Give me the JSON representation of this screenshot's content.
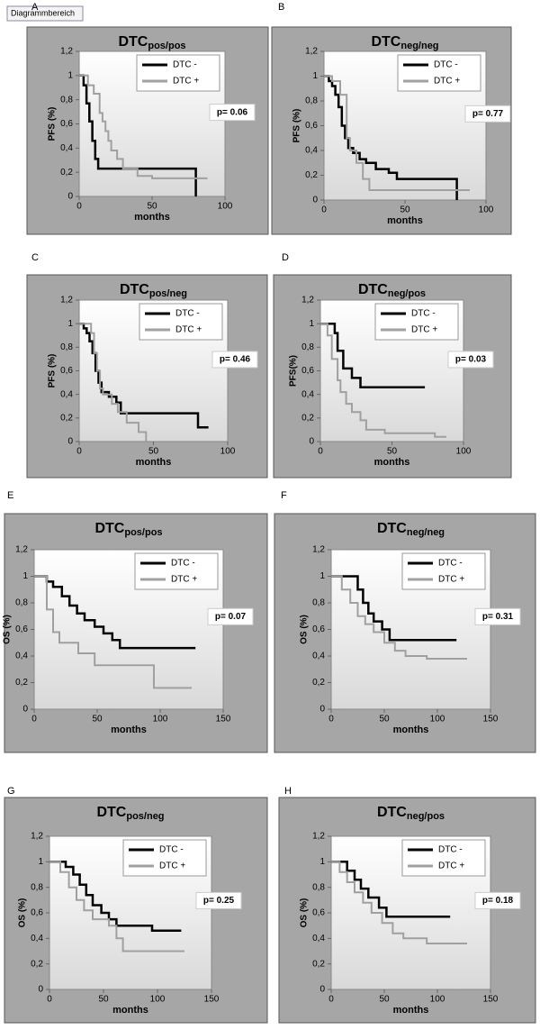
{
  "tooltip": "Diagrammbereich",
  "chart_data": [
    {
      "type": "line",
      "panel": "A",
      "title": "DTC",
      "title_sub": "pos/pos",
      "ylabel": "PFS (%)",
      "xlabel": "months",
      "annotation": "p= 0.06",
      "xlim": [
        0,
        100
      ],
      "xticks": [
        0,
        50,
        100
      ],
      "ylim": [
        0,
        1.2
      ],
      "yticks": [
        0,
        {
          "value": 0.2,
          "label": "0,2"
        },
        {
          "value": 0.4,
          "label": "0,4"
        },
        {
          "value": 0.6,
          "label": "0,6"
        },
        {
          "value": 0.8,
          "label": "0,8"
        },
        1,
        {
          "value": 1.2,
          "label": "1,2"
        }
      ],
      "series": [
        {
          "name": "DTC -",
          "color": "#000000",
          "x": [
            0,
            3,
            3,
            5,
            5,
            7,
            7,
            9,
            9,
            11,
            11,
            13,
            13,
            80,
            80
          ],
          "values": [
            1,
            1,
            0.92,
            0.92,
            0.77,
            0.77,
            0.62,
            0.62,
            0.46,
            0.46,
            0.31,
            0.31,
            0.23,
            0.23,
            0
          ]
        },
        {
          "name": "DTC +",
          "color": "#a0a0a0",
          "x": [
            0,
            6,
            6,
            10,
            10,
            14,
            14,
            16,
            16,
            18,
            18,
            20,
            20,
            22,
            22,
            26,
            26,
            30,
            30,
            40,
            40,
            50,
            50,
            88
          ],
          "values": [
            1,
            1,
            0.92,
            0.92,
            0.85,
            0.85,
            0.69,
            0.69,
            0.62,
            0.62,
            0.54,
            0.54,
            0.46,
            0.46,
            0.38,
            0.38,
            0.31,
            0.31,
            0.23,
            0.23,
            0.17,
            0.17,
            0.15,
            0.15
          ]
        }
      ]
    },
    {
      "type": "line",
      "panel": "B",
      "title": "DTC",
      "title_sub": "neg/neg",
      "ylabel": "PFS (%)",
      "xlabel": "months",
      "annotation": "p= 0.77",
      "xlim": [
        0,
        100
      ],
      "xticks": [
        0,
        50,
        100
      ],
      "ylim": [
        0,
        1.2
      ],
      "yticks": [
        0,
        {
          "value": 0.2,
          "label": "0,2"
        },
        {
          "value": 0.4,
          "label": "0,4"
        },
        {
          "value": 0.6,
          "label": "0,6"
        },
        {
          "value": 0.8,
          "label": "0,8"
        },
        1,
        {
          "value": 1.2,
          "label": "1,2"
        }
      ],
      "series": [
        {
          "name": "DTC -",
          "color": "#000000",
          "x": [
            0,
            3,
            3,
            5,
            5,
            7,
            7,
            9,
            9,
            11,
            11,
            13,
            13,
            15,
            15,
            18,
            18,
            22,
            22,
            26,
            26,
            32,
            32,
            40,
            40,
            45,
            45,
            82,
            82
          ],
          "values": [
            1,
            1,
            0.96,
            0.96,
            0.92,
            0.92,
            0.85,
            0.85,
            0.75,
            0.75,
            0.6,
            0.6,
            0.5,
            0.5,
            0.42,
            0.42,
            0.38,
            0.38,
            0.33,
            0.33,
            0.3,
            0.3,
            0.25,
            0.25,
            0.22,
            0.22,
            0.17,
            0.17,
            0
          ]
        },
        {
          "name": "DTC +",
          "color": "#a0a0a0",
          "x": [
            0,
            5,
            5,
            10,
            10,
            14,
            14,
            16,
            16,
            20,
            20,
            24,
            24,
            28,
            28,
            90
          ],
          "values": [
            1,
            1,
            0.96,
            0.96,
            0.85,
            0.85,
            0.5,
            0.5,
            0.4,
            0.4,
            0.3,
            0.3,
            0.17,
            0.17,
            0.08,
            0.08
          ]
        }
      ]
    },
    {
      "type": "line",
      "panel": "C",
      "title": "DTC",
      "title_sub": "pos/neg",
      "ylabel": "PFS (%)",
      "xlabel": "months",
      "annotation": "p= 0.46",
      "xlim": [
        0,
        100
      ],
      "xticks": [
        0,
        50,
        100
      ],
      "ylim": [
        0,
        1.2
      ],
      "yticks": [
        0,
        {
          "value": 0.2,
          "label": "0,2"
        },
        {
          "value": 0.4,
          "label": "0,4"
        },
        {
          "value": 0.6,
          "label": "0,6"
        },
        {
          "value": 0.8,
          "label": "0,8"
        },
        1,
        {
          "value": 1.2,
          "label": "1,2"
        }
      ],
      "series": [
        {
          "name": "DTC -",
          "color": "#000000",
          "x": [
            0,
            3,
            3,
            5,
            5,
            7,
            7,
            9,
            9,
            11,
            11,
            13,
            13,
            15,
            15,
            20,
            20,
            25,
            25,
            28,
            28,
            80,
            80,
            87
          ],
          "values": [
            1,
            1,
            0.96,
            0.96,
            0.92,
            0.92,
            0.85,
            0.85,
            0.75,
            0.75,
            0.6,
            0.6,
            0.5,
            0.5,
            0.42,
            0.42,
            0.38,
            0.38,
            0.33,
            0.33,
            0.24,
            0.24,
            0.12,
            0.12
          ]
        },
        {
          "name": "DTC +",
          "color": "#a0a0a0",
          "x": [
            0,
            8,
            8,
            10,
            10,
            12,
            12,
            14,
            14,
            16,
            16,
            22,
            22,
            26,
            26,
            32,
            32,
            40,
            40,
            45,
            45
          ],
          "values": [
            1,
            1,
            0.92,
            0.92,
            0.75,
            0.75,
            0.6,
            0.6,
            0.45,
            0.45,
            0.4,
            0.4,
            0.32,
            0.32,
            0.25,
            0.25,
            0.16,
            0.16,
            0.08,
            0.08,
            0
          ]
        }
      ]
    },
    {
      "type": "line",
      "panel": "D",
      "title": "DTC",
      "title_sub": "neg/pos",
      "ylabel": "PFS(%)",
      "xlabel": "months",
      "annotation": "p= 0.03",
      "xlim": [
        0,
        100
      ],
      "xticks": [
        0,
        50,
        100
      ],
      "ylim": [
        0,
        1.2
      ],
      "yticks": [
        0,
        {
          "value": 0.2,
          "label": "0,2"
        },
        {
          "value": 0.4,
          "label": "0,4"
        },
        {
          "value": 0.6,
          "label": "0,6"
        },
        {
          "value": 0.8,
          "label": "0,8"
        },
        1,
        {
          "value": 1.2,
          "label": "1,2"
        }
      ],
      "series": [
        {
          "name": "DTC -",
          "color": "#000000",
          "x": [
            0,
            10,
            10,
            12,
            12,
            16,
            16,
            22,
            22,
            28,
            28,
            73
          ],
          "values": [
            1,
            1,
            0.92,
            0.92,
            0.77,
            0.77,
            0.62,
            0.62,
            0.54,
            0.54,
            0.46,
            0.46
          ]
        },
        {
          "name": "DTC +",
          "color": "#a0a0a0",
          "x": [
            0,
            5,
            5,
            8,
            8,
            12,
            12,
            14,
            14,
            18,
            18,
            22,
            22,
            28,
            28,
            32,
            32,
            45,
            45,
            80,
            80,
            88
          ],
          "values": [
            1,
            1,
            0.9,
            0.9,
            0.7,
            0.7,
            0.52,
            0.52,
            0.42,
            0.42,
            0.32,
            0.32,
            0.25,
            0.25,
            0.18,
            0.18,
            0.1,
            0.1,
            0.07,
            0.07,
            0.04,
            0.04
          ]
        }
      ]
    },
    {
      "type": "line",
      "panel": "E",
      "title": "DTC",
      "title_sub": "pos/pos",
      "ylabel": "OS (%)",
      "xlabel": "months",
      "annotation": "p= 0.07",
      "xlim": [
        0,
        150
      ],
      "xticks": [
        0,
        50,
        100,
        150
      ],
      "ylim": [
        0,
        1.2
      ],
      "yticks": [
        0,
        {
          "value": 0.2,
          "label": "0,2"
        },
        {
          "value": 0.4,
          "label": "0,4"
        },
        {
          "value": 0.6,
          "label": "0,6"
        },
        {
          "value": 0.8,
          "label": "0,8"
        },
        1,
        {
          "value": 1.2,
          "label": "1,2"
        }
      ],
      "series": [
        {
          "name": "DTC -",
          "color": "#000000",
          "x": [
            0,
            10,
            10,
            15,
            15,
            22,
            22,
            28,
            28,
            34,
            34,
            40,
            40,
            48,
            48,
            55,
            55,
            62,
            62,
            68,
            68,
            128
          ],
          "values": [
            1,
            1,
            0.96,
            0.96,
            0.92,
            0.92,
            0.85,
            0.85,
            0.78,
            0.78,
            0.72,
            0.72,
            0.67,
            0.67,
            0.62,
            0.62,
            0.57,
            0.57,
            0.52,
            0.52,
            0.46,
            0.46
          ]
        },
        {
          "name": "DTC +",
          "color": "#a0a0a0",
          "x": [
            0,
            10,
            10,
            15,
            15,
            20,
            20,
            35,
            35,
            48,
            48,
            95,
            95,
            125
          ],
          "values": [
            1,
            1,
            0.75,
            0.75,
            0.58,
            0.58,
            0.5,
            0.5,
            0.42,
            0.42,
            0.33,
            0.33,
            0.16,
            0.16
          ]
        }
      ]
    },
    {
      "type": "line",
      "panel": "F",
      "title": "DTC",
      "title_sub": "neg/neg",
      "ylabel": "OS (%)",
      "xlabel": "months",
      "annotation": "p= 0.31",
      "xlim": [
        0,
        150
      ],
      "xticks": [
        0,
        50,
        100,
        150
      ],
      "ylim": [
        0,
        1.2
      ],
      "yticks": [
        0,
        {
          "value": 0.2,
          "label": "0,2"
        },
        {
          "value": 0.4,
          "label": "0,4"
        },
        {
          "value": 0.6,
          "label": "0,6"
        },
        {
          "value": 0.8,
          "label": "0,8"
        },
        1,
        {
          "value": 1.2,
          "label": "1,2"
        }
      ],
      "series": [
        {
          "name": "DTC -",
          "color": "#000000",
          "x": [
            0,
            25,
            25,
            30,
            30,
            35,
            35,
            40,
            40,
            48,
            48,
            55,
            55,
            118
          ],
          "values": [
            1,
            1,
            0.9,
            0.9,
            0.8,
            0.8,
            0.72,
            0.72,
            0.66,
            0.66,
            0.6,
            0.6,
            0.52,
            0.52
          ]
        },
        {
          "name": "DTC +",
          "color": "#a0a0a0",
          "x": [
            0,
            10,
            10,
            18,
            18,
            25,
            25,
            32,
            32,
            40,
            40,
            50,
            50,
            60,
            60,
            70,
            70,
            90,
            90,
            128
          ],
          "values": [
            1,
            1,
            0.9,
            0.9,
            0.8,
            0.8,
            0.7,
            0.7,
            0.64,
            0.64,
            0.58,
            0.58,
            0.5,
            0.5,
            0.44,
            0.44,
            0.4,
            0.4,
            0.38,
            0.38
          ]
        }
      ]
    },
    {
      "type": "line",
      "panel": "G",
      "title": "DTC",
      "title_sub": "pos/neg",
      "ylabel": "OS (%)",
      "xlabel": "months",
      "annotation": "p= 0.25",
      "xlim": [
        0,
        150
      ],
      "xticks": [
        0,
        50,
        100,
        150
      ],
      "ylim": [
        0,
        1.2
      ],
      "yticks": [
        0,
        {
          "value": 0.2,
          "label": "0,2"
        },
        {
          "value": 0.4,
          "label": "0,4"
        },
        {
          "value": 0.6,
          "label": "0,6"
        },
        {
          "value": 0.8,
          "label": "0,8"
        },
        1,
        {
          "value": 1.2,
          "label": "1,2"
        }
      ],
      "series": [
        {
          "name": "DTC -",
          "color": "#000000",
          "x": [
            0,
            15,
            15,
            22,
            22,
            28,
            28,
            34,
            34,
            40,
            40,
            48,
            48,
            55,
            55,
            62,
            62,
            95,
            95,
            122
          ],
          "values": [
            1,
            1,
            0.96,
            0.96,
            0.9,
            0.9,
            0.82,
            0.82,
            0.74,
            0.74,
            0.66,
            0.66,
            0.6,
            0.6,
            0.55,
            0.55,
            0.5,
            0.5,
            0.46,
            0.46
          ]
        },
        {
          "name": "DTC +",
          "color": "#a0a0a0",
          "x": [
            0,
            10,
            10,
            18,
            18,
            25,
            25,
            32,
            32,
            40,
            40,
            55,
            55,
            62,
            62,
            68,
            68,
            125
          ],
          "values": [
            1,
            1,
            0.92,
            0.92,
            0.8,
            0.8,
            0.7,
            0.7,
            0.62,
            0.62,
            0.55,
            0.55,
            0.5,
            0.5,
            0.4,
            0.4,
            0.3,
            0.3
          ]
        }
      ]
    },
    {
      "type": "line",
      "panel": "H",
      "title": "DTC",
      "title_sub": "neg/pos",
      "ylabel": "OS (%)",
      "xlabel": "months",
      "annotation": "p= 0.18",
      "xlim": [
        0,
        150
      ],
      "xticks": [
        0,
        50,
        100,
        150
      ],
      "ylim": [
        0,
        1.2
      ],
      "yticks": [
        0,
        {
          "value": 0.2,
          "label": "0,2"
        },
        {
          "value": 0.4,
          "label": "0,4"
        },
        {
          "value": 0.6,
          "label": "0,6"
        },
        {
          "value": 0.8,
          "label": "0,8"
        },
        1,
        {
          "value": 1.2,
          "label": "1,2"
        }
      ],
      "series": [
        {
          "name": "DTC -",
          "color": "#000000",
          "x": [
            0,
            15,
            15,
            22,
            22,
            28,
            28,
            35,
            35,
            45,
            45,
            52,
            52,
            112
          ],
          "values": [
            1,
            1,
            0.93,
            0.93,
            0.86,
            0.86,
            0.79,
            0.79,
            0.72,
            0.72,
            0.64,
            0.64,
            0.57,
            0.57
          ]
        },
        {
          "name": "DTC +",
          "color": "#a0a0a0",
          "x": [
            0,
            8,
            8,
            15,
            15,
            22,
            22,
            30,
            30,
            38,
            38,
            48,
            48,
            58,
            58,
            68,
            68,
            90,
            90,
            128
          ],
          "values": [
            1,
            1,
            0.92,
            0.92,
            0.84,
            0.84,
            0.76,
            0.76,
            0.68,
            0.68,
            0.6,
            0.6,
            0.52,
            0.52,
            0.44,
            0.44,
            0.4,
            0.4,
            0.36,
            0.36
          ]
        }
      ]
    }
  ]
}
